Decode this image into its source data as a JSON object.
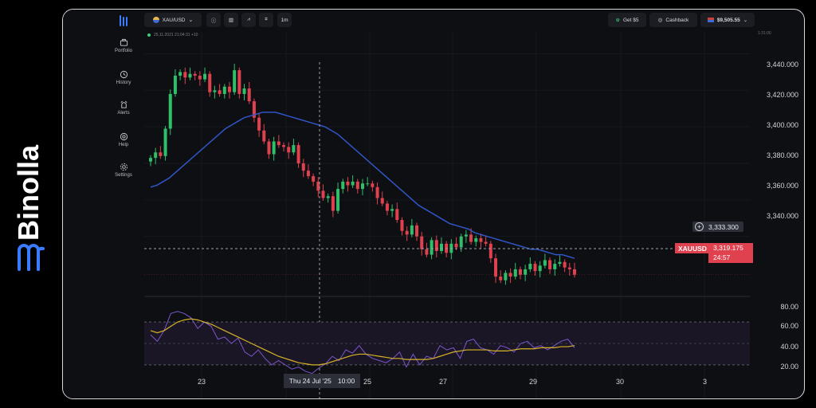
{
  "brand": {
    "name": "Binolla"
  },
  "nav": [
    {
      "label": "Portfolio",
      "icon": "briefcase-icon"
    },
    {
      "label": "History",
      "icon": "history-icon"
    },
    {
      "label": "Alerts",
      "icon": "alert-icon"
    },
    {
      "label": "Help",
      "icon": "help-icon"
    },
    {
      "label": "Settings",
      "icon": "gear-icon"
    }
  ],
  "toolbar": {
    "symbol": "XAU/USD",
    "timeframe": "1m",
    "bonus": "Get $5",
    "cashback": "Cashback",
    "balance": "$9,505.55",
    "timestamp": "25.11.2021 21:04:31 +10",
    "small_right": "1:31:00"
  },
  "chart_data": {
    "type": "candlestick",
    "symbol": "XAUUSD",
    "y_ticks": [
      "3,440.000",
      "3,420.000",
      "3,400.000",
      "3,380.000",
      "3,360.000",
      "3,340.000"
    ],
    "ylim": [
      3308,
      3452
    ],
    "x_ticks": [
      "23",
      "25",
      "27",
      "29",
      "30",
      "3"
    ],
    "current_price": "3,319.175",
    "countdown": "24:57",
    "crosshair_price": "3,333.300",
    "crosshair_date": "Thu 24 Jul '25",
    "crosshair_time": "10:00",
    "close_series": [
      3383,
      3386,
      3384,
      3399,
      3418,
      3428,
      3430,
      3427,
      3429,
      3428,
      3426,
      3429,
      3419,
      3420,
      3418,
      3422,
      3419,
      3431,
      3418,
      3421,
      3414,
      3405,
      3398,
      3392,
      3385,
      3392,
      3390,
      3389,
      3386,
      3390,
      3380,
      3376,
      3373,
      3370,
      3365,
      3361,
      3362,
      3354,
      3366,
      3370,
      3368,
      3370,
      3366,
      3369,
      3369,
      3367,
      3361,
      3358,
      3354,
      3355,
      3349,
      3343,
      3341,
      3346,
      3340,
      3333,
      3330,
      3338,
      3332,
      3336,
      3331,
      3336,
      3334,
      3340,
      3341,
      3337,
      3339,
      3337,
      3336,
      3328,
      3318,
      3316,
      3320,
      3318,
      3322,
      3319,
      3322,
      3325,
      3321,
      3324,
      3327,
      3322,
      3325,
      3326,
      3323,
      3322,
      3319
    ],
    "ma_series": [
      3367,
      3368,
      3370,
      3372,
      3375,
      3378,
      3381,
      3384,
      3387,
      3390,
      3393,
      3396,
      3399,
      3401,
      3403,
      3405,
      3406,
      3407,
      3408,
      3408,
      3408,
      3407,
      3406,
      3405,
      3404,
      3403,
      3402,
      3401,
      3400,
      3398,
      3396,
      3393,
      3390,
      3387,
      3384,
      3381,
      3378,
      3375,
      3372,
      3369,
      3366,
      3363,
      3360,
      3357,
      3355,
      3353,
      3351,
      3349,
      3347,
      3346,
      3345,
      3344,
      3342,
      3341,
      3340,
      3339,
      3338,
      3337,
      3336,
      3335,
      3334,
      3333,
      3333,
      3332,
      3331,
      3330,
      3330,
      3329,
      3328
    ],
    "rsi": {
      "y_ticks": [
        "80.00",
        "60.00",
        "40.00",
        "20.00"
      ],
      "ylim": [
        15,
        88
      ],
      "overbought": 70,
      "oversold": 30,
      "rsi_series": [
        58,
        52,
        62,
        78,
        80,
        78,
        74,
        64,
        70,
        66,
        54,
        56,
        50,
        55,
        42,
        38,
        44,
        36,
        30,
        34,
        30,
        26,
        28,
        24,
        22,
        27,
        31,
        38,
        34,
        44,
        41,
        48,
        40,
        36,
        34,
        32,
        36,
        42,
        28,
        40,
        30,
        38,
        36,
        48,
        44,
        46,
        36,
        52,
        54,
        46,
        44,
        40,
        48,
        46,
        42,
        50,
        52,
        46,
        48,
        44,
        48,
        52,
        54,
        46
      ],
      "signal_series": [
        62,
        60,
        62,
        66,
        70,
        72,
        73,
        72,
        70,
        68,
        65,
        62,
        59,
        56,
        53,
        50,
        47,
        44,
        41,
        38,
        36,
        34,
        32,
        31,
        30,
        30,
        31,
        33,
        35,
        37,
        39,
        40,
        40,
        39,
        38,
        37,
        36,
        36,
        35,
        35,
        35,
        35,
        36,
        38,
        40,
        42,
        43,
        44,
        44,
        44,
        44,
        43,
        43,
        43,
        44,
        45,
        45,
        45,
        46,
        46,
        46,
        47,
        47,
        48
      ]
    }
  }
}
